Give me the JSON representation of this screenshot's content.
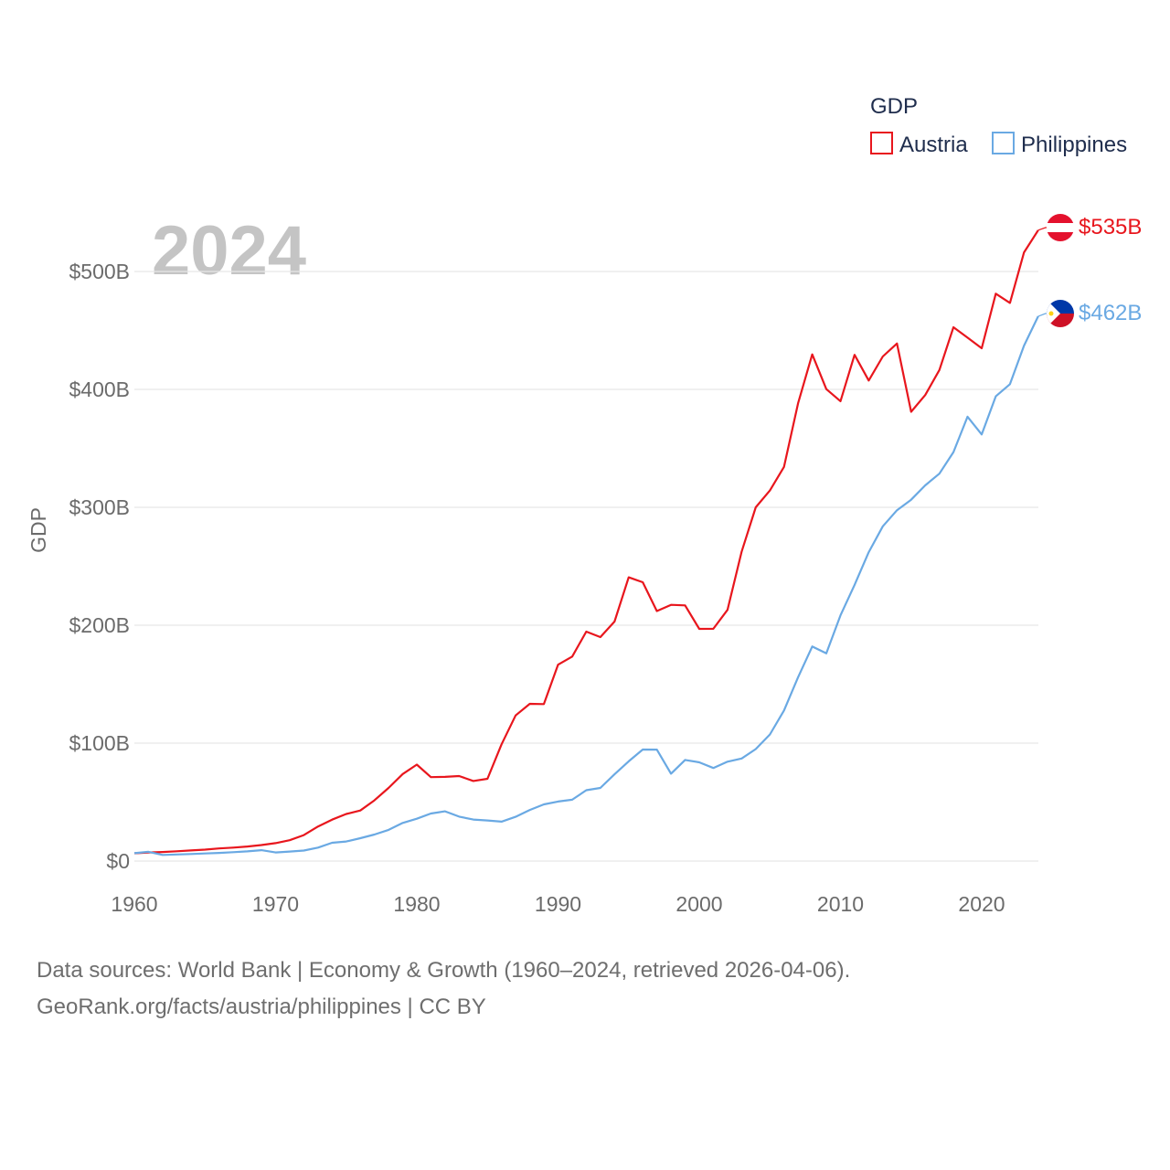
{
  "chart_data": {
    "type": "line",
    "title": "",
    "watermark_year": "2024",
    "xlabel": "",
    "ylabel": "GDP",
    "xlim": [
      1960,
      2024
    ],
    "ylim": [
      0,
      550
    ],
    "x_ticks": [
      1960,
      1970,
      1980,
      1990,
      2000,
      2010,
      2020
    ],
    "y_ticks": [
      0,
      100,
      200,
      300,
      400,
      500
    ],
    "y_tick_labels": [
      "$0",
      "$100B",
      "$200B",
      "$300B",
      "$400B",
      "$500B"
    ],
    "units": "billions of US dollars",
    "legend": {
      "title": "GDP",
      "position": "top-right"
    },
    "grid": true,
    "x": [
      1960,
      1961,
      1962,
      1963,
      1964,
      1965,
      1966,
      1967,
      1968,
      1969,
      1970,
      1971,
      1972,
      1973,
      1974,
      1975,
      1976,
      1977,
      1978,
      1979,
      1980,
      1981,
      1982,
      1983,
      1984,
      1985,
      1986,
      1987,
      1988,
      1989,
      1990,
      1991,
      1992,
      1993,
      1994,
      1995,
      1996,
      1997,
      1998,
      1999,
      2000,
      2001,
      2002,
      2003,
      2004,
      2005,
      2006,
      2007,
      2008,
      2009,
      2010,
      2011,
      2012,
      2013,
      2014,
      2015,
      2016,
      2017,
      2018,
      2019,
      2020,
      2021,
      2022,
      2023,
      2024
    ],
    "series": [
      {
        "name": "Austria",
        "color": "#e8161d",
        "end_label": "$535B",
        "flag": "austria-flag",
        "values": [
          6.6,
          7.3,
          7.7,
          8.3,
          9.0,
          9.7,
          10.7,
          11.4,
          12.3,
          13.6,
          15.2,
          17.7,
          22.0,
          29.3,
          35.1,
          39.9,
          42.9,
          51.5,
          62.0,
          73.8,
          81.8,
          71.2,
          71.4,
          72.1,
          67.9,
          69.8,
          99.0,
          123.5,
          133.3,
          133.1,
          166.5,
          173.4,
          194.6,
          189.9,
          203.1,
          240.6,
          236.4,
          212.0,
          217.3,
          216.8,
          196.9,
          197.0,
          213.0,
          262.5,
          300.0,
          314.3,
          334.3,
          388.2,
          429.7,
          400.2,
          390.0,
          429.3,
          407.5,
          427.9,
          438.9,
          381.0,
          395.2,
          416.4,
          452.7,
          443.9,
          434.9,
          481.2,
          473.3,
          516.2,
          535.0
        ]
      },
      {
        "name": "Philippines",
        "color": "#6aa9e3",
        "end_label": "$462B",
        "flag": "philippines-flag",
        "values": [
          6.7,
          7.8,
          5.2,
          5.6,
          6.0,
          6.4,
          6.9,
          7.5,
          8.2,
          9.2,
          7.3,
          8.1,
          8.9,
          11.4,
          15.5,
          16.6,
          19.4,
          22.5,
          26.4,
          32.3,
          35.9,
          40.3,
          42.2,
          37.7,
          35.2,
          34.4,
          33.4,
          37.5,
          43.3,
          48.1,
          50.5,
          52.0,
          60.1,
          62.0,
          73.6,
          84.6,
          94.6,
          94.5,
          74.1,
          85.7,
          83.7,
          78.9,
          84.3,
          87.0,
          95.0,
          107.4,
          127.7,
          155.9,
          181.9,
          176.1,
          208.4,
          234.2,
          261.9,
          283.9,
          297.5,
          306.4,
          318.6,
          328.5,
          346.8,
          376.8,
          361.8,
          394.1,
          404.4,
          437.1,
          462.0
        ]
      }
    ]
  },
  "footer": {
    "line1": "Data sources: World Bank | Economy & Growth (1960–2024, retrieved 2026-04-06).",
    "line2": "GeoRank.org/facts/austria/philippines | CC BY"
  }
}
